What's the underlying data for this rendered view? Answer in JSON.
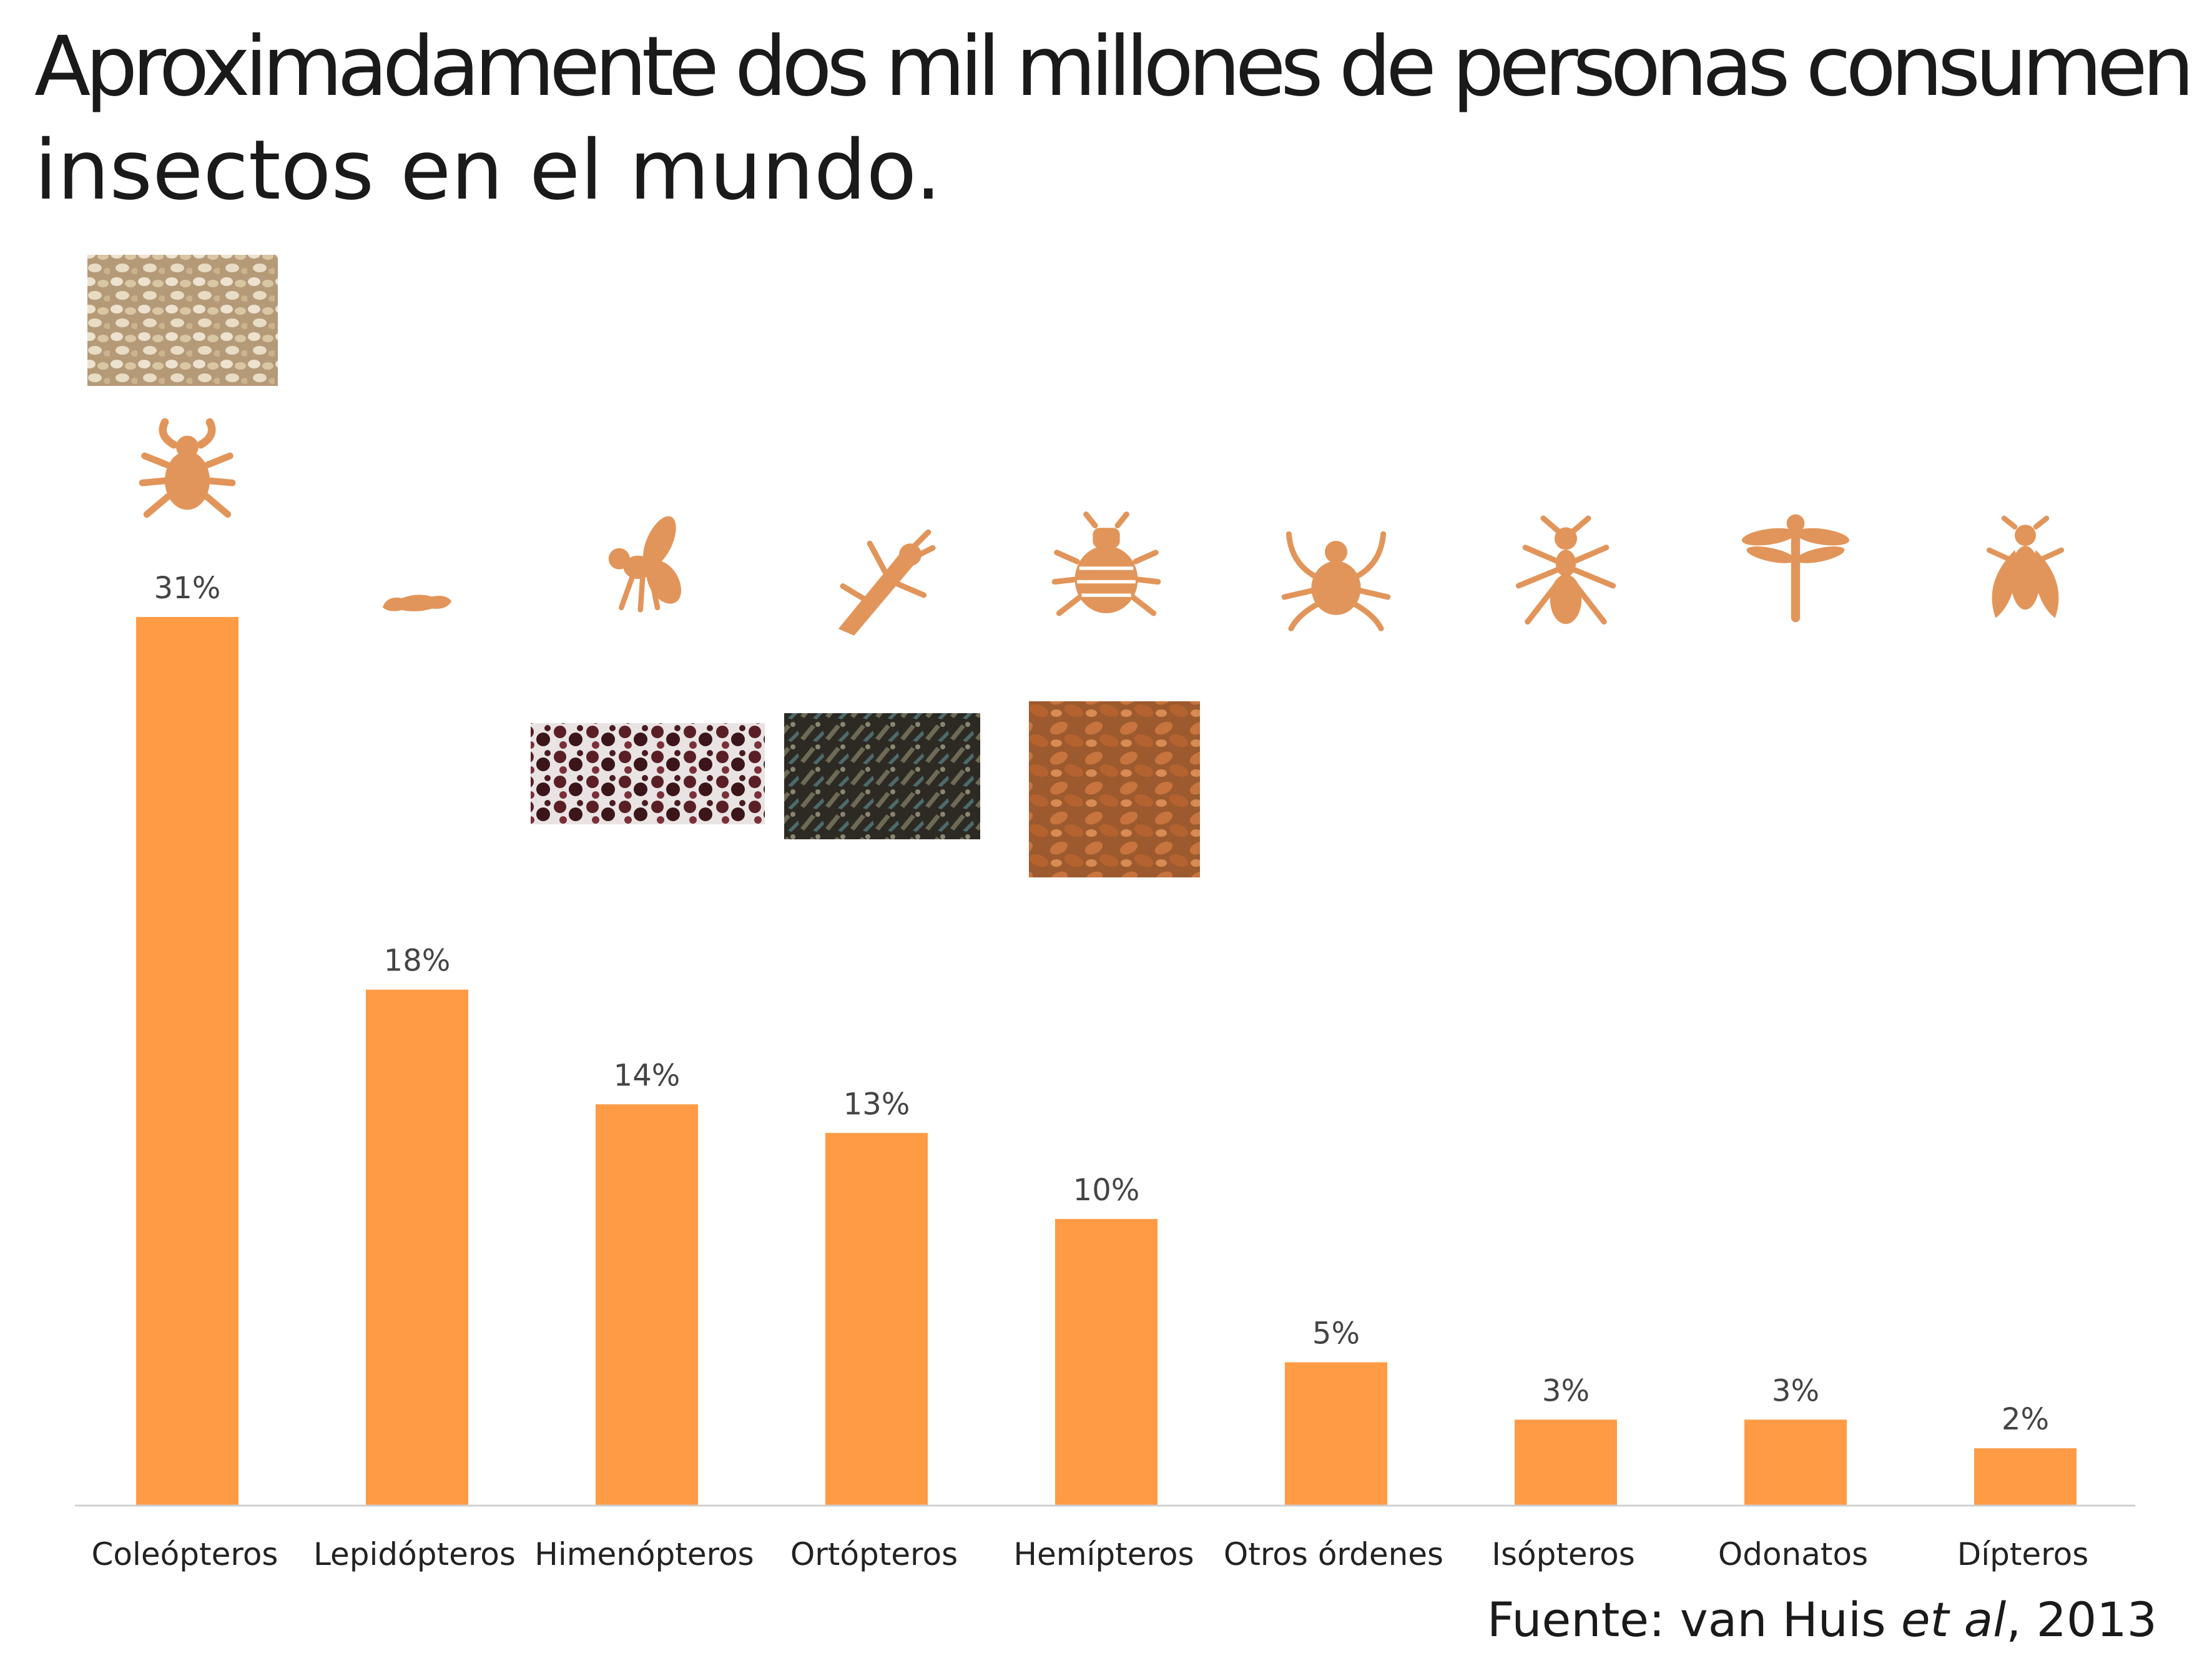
{
  "title_lines": [
    "Aproximadamente dos mil millones de personas consumen",
    "insectos en el mundo."
  ],
  "source": {
    "prefix": "Fuente: van Huis ",
    "italic": "et al",
    "suffix": ", 2013"
  },
  "colors": {
    "bar": "#FF9B45",
    "icon": "#E2955A",
    "axis": "#D0D0D0"
  },
  "chart_data": {
    "type": "bar",
    "title": "Aproximadamente dos mil millones de personas consumen insectos en el mundo.",
    "categories": [
      "Coleópteros",
      "Lepidópteros",
      "Himenópteros",
      "Ortópteros",
      "Hemípteros",
      "Otros órdenes",
      "Isópteros",
      "Odonatos",
      "Dípteros"
    ],
    "values": [
      31,
      18,
      14,
      13,
      10,
      5,
      3,
      3,
      2
    ],
    "value_labels": [
      "31%",
      "18%",
      "14%",
      "13%",
      "10%",
      "5%",
      "3%",
      "3%",
      "2%"
    ],
    "unit": "%",
    "icons": [
      "beetle-icon",
      "caterpillar-icon",
      "bee-icon",
      "grasshopper-icon",
      "bug-icon",
      "tick-icon",
      "termite-icon",
      "dragonfly-icon",
      "fly-icon"
    ],
    "ylim": [
      0,
      31
    ],
    "grid": false,
    "legend": "none"
  }
}
